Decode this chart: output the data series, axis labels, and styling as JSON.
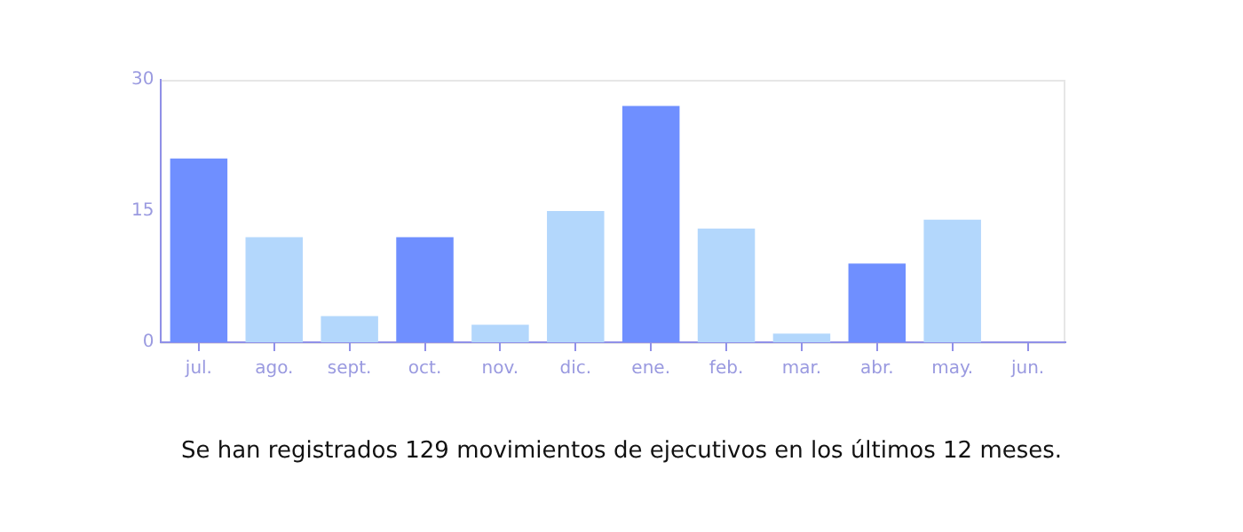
{
  "chart_data": {
    "type": "bar",
    "categories": [
      "jul.",
      "ago.",
      "sept.",
      "oct.",
      "nov.",
      "dic.",
      "ene.",
      "feb.",
      "mar.",
      "abr.",
      "may.",
      "jun."
    ],
    "values": [
      21,
      12,
      3,
      12,
      2,
      15,
      27,
      13,
      1,
      9,
      14,
      0
    ],
    "colors": [
      "#6f8fff",
      "#b3d7fc",
      "#b3d7fc",
      "#6f8fff",
      "#b3d7fc",
      "#b3d7fc",
      "#6f8fff",
      "#b3d7fc",
      "#b3d7fc",
      "#6f8fff",
      "#b3d7fc",
      "#b3d7fc"
    ],
    "ylim": [
      0,
      30
    ],
    "yticks": [
      0,
      15,
      30
    ],
    "grid": false,
    "legend": false,
    "annotations": [
      "Se han registrados 129 movimientos de ejecutivos en los últimos 12 meses."
    ]
  }
}
